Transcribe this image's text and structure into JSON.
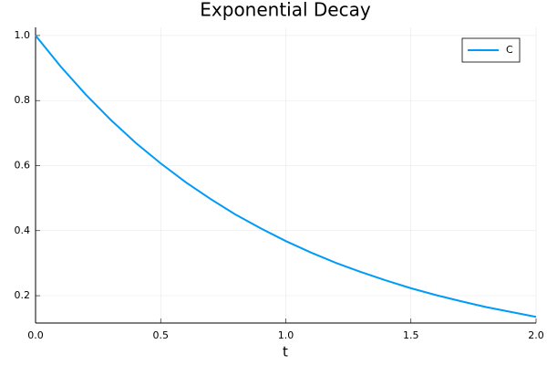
{
  "chart_data": {
    "type": "line",
    "title": "Exponential Decay",
    "x_label": "t",
    "x": [
      0,
      0.1,
      0.2,
      0.3,
      0.4,
      0.5,
      0.6,
      0.7,
      0.8,
      0.9,
      1.0,
      1.1,
      1.2,
      1.3,
      1.4,
      1.5,
      1.6,
      1.7,
      1.8,
      1.9,
      2.0
    ],
    "series": [
      {
        "name": "C",
        "color": "#009af9",
        "values": [
          1.0,
          0.905,
          0.819,
          0.741,
          0.67,
          0.607,
          0.549,
          0.497,
          0.449,
          0.407,
          0.368,
          0.333,
          0.301,
          0.273,
          0.247,
          0.223,
          0.202,
          0.183,
          0.165,
          0.15,
          0.135
        ]
      }
    ],
    "xlim": [
      0,
      2
    ],
    "xticks": [
      {
        "value": 0,
        "label": "0.0"
      },
      0.5,
      {
        "value": 1,
        "label": "1.0"
      },
      1.5,
      {
        "value": 2,
        "label": "2.0"
      }
    ],
    "ylim": [
      0.116,
      1.025
    ],
    "yticks": [
      0.2,
      0.4,
      0.6,
      0.8,
      {
        "value": 1,
        "label": "1.0"
      }
    ],
    "grid": true,
    "legend": "top-right"
  }
}
